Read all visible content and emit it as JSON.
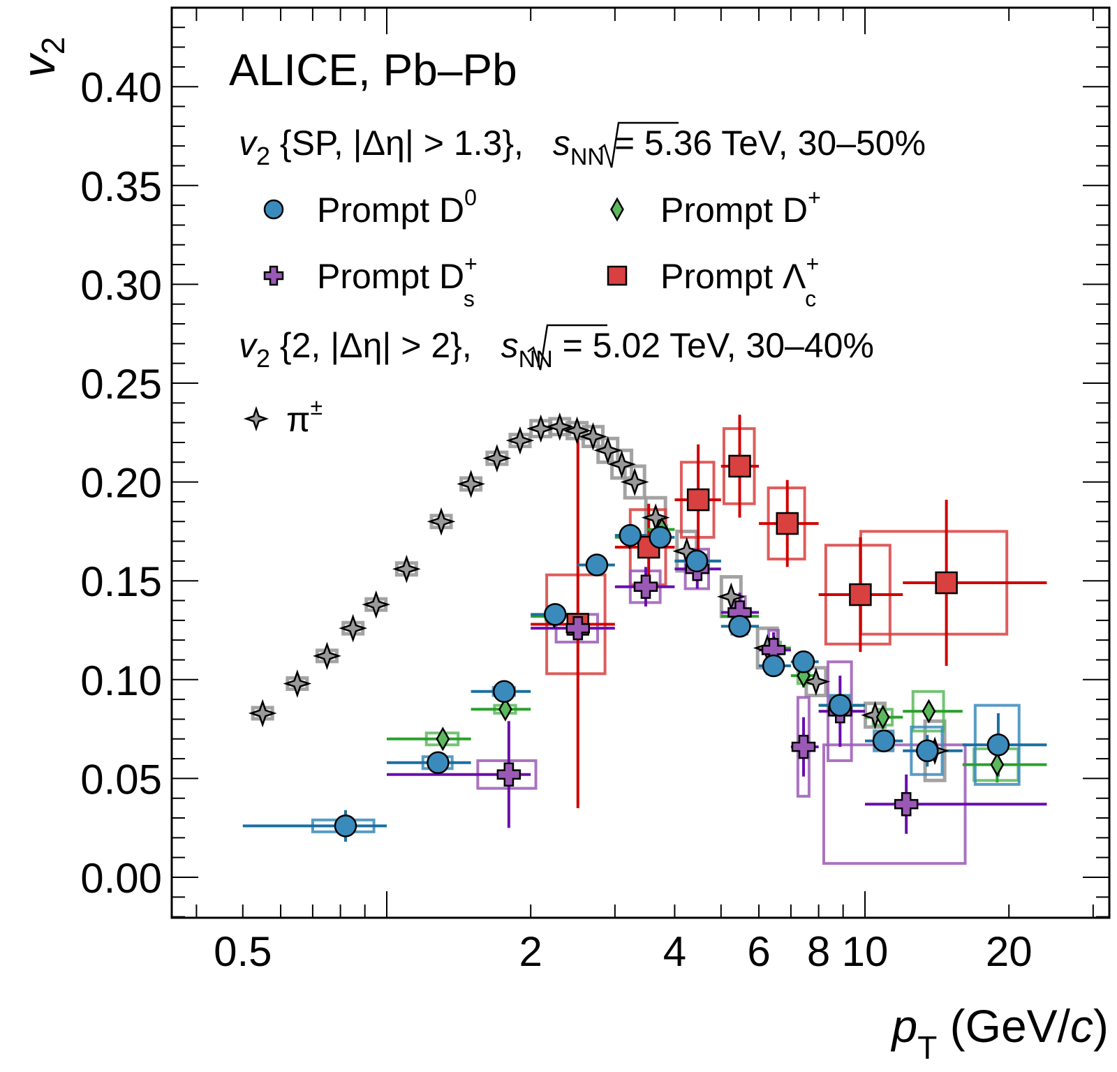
{
  "chart_data": {
    "type": "scatter",
    "title": "ALICE, Pb–Pb",
    "xlabel": "p_T (GeV/c)",
    "xlabel_main": "p",
    "xlabel_sub": "T",
    "xlabel_rest": " (GeV/",
    "xlabel_c": "c",
    "xlabel_close": ")",
    "ylabel": "v_2",
    "ylabel_main": "v",
    "ylabel_sub": "2",
    "xscale": "log",
    "xlim": [
      0.36,
      33
    ],
    "ylim": [
      -0.021,
      0.44
    ],
    "x_ticks": [
      0.5,
      2,
      4,
      6,
      8,
      10,
      20
    ],
    "x_tick_labels": [
      "0.5",
      "2",
      "4",
      "6",
      "8",
      "10",
      "20"
    ],
    "y_ticks": [
      0.0,
      0.05,
      0.1,
      0.15,
      0.2,
      0.25,
      0.3,
      0.35,
      0.4
    ],
    "y_tick_labels": [
      "0.00",
      "0.05",
      "0.10",
      "0.15",
      "0.20",
      "0.25",
      "0.30",
      "0.35",
      "0.40"
    ],
    "grid": false,
    "legend_placement": "top-left",
    "annotations": {
      "line1": {
        "v": "v",
        "sub": "2",
        "text": " {SP, |Δη| > 1.3},  ",
        "sqrt": "s",
        "sqrt_sub": "NN",
        "rest": " = 5.36 TeV, 30–50%"
      },
      "line2": {
        "v": "v",
        "sub": "2",
        "text": " {2, |Δη| > 2},  ",
        "sqrt": "s",
        "sqrt_sub": "NN",
        "rest": " = 5.02 TeV, 30–40%"
      }
    },
    "series": [
      {
        "name": "Prompt D0",
        "label_main": "Prompt D",
        "label_sup": "0",
        "label_sub": "",
        "marker": "circle",
        "color": "#1a6fa0",
        "fill": "#3a8bbb",
        "points": [
          {
            "x": 0.82,
            "y": 0.026,
            "xlo": 0.5,
            "xhi": 1.0,
            "ey": 0.008,
            "sx": 0.12,
            "sy": 0.003
          },
          {
            "x": 1.28,
            "y": 0.058,
            "xlo": 1.0,
            "xhi": 1.5,
            "ey": 0.002,
            "sx": 0.09,
            "sy": 0.003
          },
          {
            "x": 1.76,
            "y": 0.094,
            "xlo": 1.5,
            "xhi": 2.0,
            "ey": 0.002,
            "sx": 0.09,
            "sy": 0.002
          },
          {
            "x": 2.25,
            "y": 0.133,
            "xlo": 2.0,
            "xhi": 2.5,
            "ey": 0.002,
            "sx": 0.09,
            "sy": 0.002
          },
          {
            "x": 2.75,
            "y": 0.158,
            "xlo": 2.5,
            "xhi": 3.0,
            "ey": 0.002,
            "sx": 0.09,
            "sy": 0.002
          },
          {
            "x": 3.23,
            "y": 0.173,
            "xlo": 3.0,
            "xhi": 3.5,
            "ey": 0.003,
            "sx": 0.09,
            "sy": 0.002
          },
          {
            "x": 3.73,
            "y": 0.172,
            "xlo": 3.5,
            "xhi": 4.0,
            "ey": 0.003,
            "sx": 0.09,
            "sy": 0.002
          },
          {
            "x": 4.45,
            "y": 0.16,
            "xlo": 4.0,
            "xhi": 5.0,
            "ey": 0.004,
            "sx": 0.2,
            "sy": 0.003
          },
          {
            "x": 5.47,
            "y": 0.127,
            "xlo": 5.0,
            "xhi": 6.0,
            "ey": 0.004,
            "sx": 0.2,
            "sy": 0.004
          },
          {
            "x": 6.44,
            "y": 0.107,
            "xlo": 6.0,
            "xhi": 7.0,
            "ey": 0.005,
            "sx": 0.2,
            "sy": 0.004
          },
          {
            "x": 7.44,
            "y": 0.109,
            "xlo": 7.0,
            "xhi": 8.0,
            "ey": 0.005,
            "sx": 0.2,
            "sy": 0.004
          },
          {
            "x": 8.87,
            "y": 0.087,
            "xlo": 8.0,
            "xhi": 10.0,
            "ey": 0.006,
            "sx": 0.4,
            "sy": 0.005
          },
          {
            "x": 10.95,
            "y": 0.069,
            "xlo": 10.0,
            "xhi": 12.0,
            "ey": 0.005,
            "sx": 0.5,
            "sy": 0.005
          },
          {
            "x": 13.5,
            "y": 0.064,
            "xlo": 12.0,
            "xhi": 16.0,
            "ey": 0.008,
            "sx": 1.0,
            "sy": 0.012
          },
          {
            "x": 19.0,
            "y": 0.067,
            "xlo": 16.0,
            "xhi": 24.0,
            "ey": 0.016,
            "sx": 2.0,
            "sy": 0.02
          }
        ]
      },
      {
        "name": "Prompt D+",
        "label_main": "Prompt D",
        "label_sup": "+",
        "label_sub": "",
        "marker": "diamond",
        "color": "#2ca02c",
        "fill": "#5cb85c",
        "points": [
          {
            "x": 1.31,
            "y": 0.07,
            "xlo": 1.0,
            "xhi": 1.5,
            "ey": 0.004,
            "sx": 0.1,
            "sy": 0.003
          },
          {
            "x": 1.77,
            "y": 0.085,
            "xlo": 1.5,
            "xhi": 2.0,
            "ey": 0.003,
            "sx": 0.09,
            "sy": 0.002
          },
          {
            "x": 2.24,
            "y": 0.132,
            "xlo": 2.0,
            "xhi": 2.5,
            "ey": 0.002,
            "sx": 0.09,
            "sy": 0.002
          },
          {
            "x": 3.22,
            "y": 0.172,
            "xlo": 3.0,
            "xhi": 3.5,
            "ey": 0.002,
            "sx": 0.09,
            "sy": 0.002
          },
          {
            "x": 3.76,
            "y": 0.176,
            "xlo": 3.5,
            "xhi": 4.0,
            "ey": 0.003,
            "sx": 0.09,
            "sy": 0.002
          },
          {
            "x": 4.46,
            "y": 0.16,
            "xlo": 4.0,
            "xhi": 5.0,
            "ey": 0.004,
            "sx": 0.2,
            "sy": 0.003
          },
          {
            "x": 5.47,
            "y": 0.132,
            "xlo": 5.0,
            "xhi": 6.0,
            "ey": 0.005,
            "sx": 0.2,
            "sy": 0.003
          },
          {
            "x": 6.46,
            "y": 0.116,
            "xlo": 6.0,
            "xhi": 7.0,
            "ey": 0.005,
            "sx": 0.2,
            "sy": 0.003
          },
          {
            "x": 7.44,
            "y": 0.102,
            "xlo": 7.0,
            "xhi": 8.0,
            "ey": 0.006,
            "sx": 0.2,
            "sy": 0.004
          },
          {
            "x": 8.87,
            "y": 0.087,
            "xlo": 8.0,
            "xhi": 10.0,
            "ey": 0.006,
            "sx": 0.4,
            "sy": 0.005
          },
          {
            "x": 10.9,
            "y": 0.081,
            "xlo": 10.0,
            "xhi": 12.0,
            "ey": 0.006,
            "sx": 0.5,
            "sy": 0.004
          },
          {
            "x": 13.6,
            "y": 0.084,
            "xlo": 12.0,
            "xhi": 16.0,
            "ey": 0.004,
            "sx": 1.0,
            "sy": 0.01
          },
          {
            "x": 18.9,
            "y": 0.057,
            "xlo": 16.0,
            "xhi": 24.0,
            "ey": 0.009,
            "sx": 2.0,
            "sy": 0.008
          }
        ]
      },
      {
        "name": "Prompt Ds+",
        "label_main": "Prompt D",
        "label_sup": "+",
        "label_sub": "s",
        "marker": "cross",
        "color": "#6a0dad",
        "fill": "#9b59b6",
        "points": [
          {
            "x": 1.8,
            "y": 0.052,
            "xlo": 1.0,
            "xhi": 2.0,
            "ey": 0.027,
            "sx": 0.25,
            "sy": 0.007
          },
          {
            "x": 2.51,
            "y": 0.126,
            "xlo": 2.0,
            "xhi": 3.0,
            "ey": 0.003,
            "sx": 0.25,
            "sy": 0.007
          },
          {
            "x": 3.48,
            "y": 0.147,
            "xlo": 3.0,
            "xhi": 4.0,
            "ey": 0.01,
            "sx": 0.25,
            "sy": 0.008
          },
          {
            "x": 4.46,
            "y": 0.156,
            "xlo": 4.0,
            "xhi": 5.0,
            "ey": 0.01,
            "sx": 0.25,
            "sy": 0.01
          },
          {
            "x": 5.47,
            "y": 0.134,
            "xlo": 5.0,
            "xhi": 6.0,
            "ey": 0.01,
            "sx": 0.15,
            "sy": 0.008
          },
          {
            "x": 6.44,
            "y": 0.115,
            "xlo": 6.0,
            "xhi": 7.0,
            "ey": 0.009,
            "sx": 0.15,
            "sy": 0.01
          },
          {
            "x": 7.44,
            "y": 0.066,
            "xlo": 7.0,
            "xhi": 8.0,
            "ey": 0.015,
            "sx": 0.2,
            "sy": 0.025
          },
          {
            "x": 8.87,
            "y": 0.084,
            "xlo": 8.0,
            "xhi": 10.0,
            "ey": 0.018,
            "sx": 0.5,
            "sy": 0.025
          },
          {
            "x": 12.2,
            "y": 0.037,
            "xlo": 10.0,
            "xhi": 24.0,
            "ey": 0.015,
            "sx": 4.0,
            "sy": 0.03
          }
        ]
      },
      {
        "name": "Prompt Lambda_c+",
        "label_main": "Prompt Λ",
        "label_sup": "+",
        "label_sub": "c",
        "marker": "square",
        "color": "#d00000",
        "fill": "#d94040",
        "points": [
          {
            "x": 2.51,
            "y": 0.128,
            "xlo": 2.0,
            "xhi": 3.0,
            "ey": 0.093,
            "sx": 0.35,
            "sy": 0.025
          },
          {
            "x": 3.53,
            "y": 0.167,
            "xlo": 3.0,
            "xhi": 4.0,
            "ey": 0.022,
            "sx": 0.3,
            "sy": 0.019
          },
          {
            "x": 4.48,
            "y": 0.191,
            "xlo": 4.0,
            "xhi": 5.0,
            "ey": 0.028,
            "sx": 0.35,
            "sy": 0.019
          },
          {
            "x": 5.47,
            "y": 0.208,
            "xlo": 5.0,
            "xhi": 6.0,
            "ey": 0.026,
            "sx": 0.4,
            "sy": 0.019
          },
          {
            "x": 6.88,
            "y": 0.179,
            "xlo": 6.0,
            "xhi": 8.0,
            "ey": 0.022,
            "sx": 0.6,
            "sy": 0.018
          },
          {
            "x": 9.78,
            "y": 0.143,
            "xlo": 8.0,
            "xhi": 12.0,
            "ey": 0.029,
            "sx": 1.5,
            "sy": 0.025
          },
          {
            "x": 14.8,
            "y": 0.149,
            "xlo": 12.0,
            "xhi": 24.0,
            "ey": 0.042,
            "sx": 5.0,
            "sy": 0.026
          }
        ]
      },
      {
        "name": "pi+-",
        "label_main": "π",
        "label_sup": "±",
        "label_sub": "",
        "marker": "star4",
        "color": "#000000",
        "fill": "#999999",
        "syscolor": "#999999",
        "points": [
          {
            "x": 0.55,
            "y": 0.083,
            "sy": 0.002
          },
          {
            "x": 0.65,
            "y": 0.098,
            "sy": 0.002
          },
          {
            "x": 0.75,
            "y": 0.112,
            "sy": 0.002
          },
          {
            "x": 0.85,
            "y": 0.126,
            "sy": 0.002
          },
          {
            "x": 0.95,
            "y": 0.138,
            "sy": 0.002
          },
          {
            "x": 1.1,
            "y": 0.156,
            "sy": 0.003
          },
          {
            "x": 1.3,
            "y": 0.18,
            "sy": 0.003
          },
          {
            "x": 1.5,
            "y": 0.199,
            "sy": 0.003
          },
          {
            "x": 1.7,
            "y": 0.212,
            "sy": 0.003
          },
          {
            "x": 1.9,
            "y": 0.221,
            "sy": 0.003
          },
          {
            "x": 2.1,
            "y": 0.227,
            "sy": 0.004
          },
          {
            "x": 2.3,
            "y": 0.228,
            "sy": 0.004
          },
          {
            "x": 2.5,
            "y": 0.226,
            "sy": 0.004
          },
          {
            "x": 2.7,
            "y": 0.223,
            "sy": 0.005
          },
          {
            "x": 2.9,
            "y": 0.216,
            "sy": 0.006
          },
          {
            "x": 3.1,
            "y": 0.209,
            "sy": 0.007
          },
          {
            "x": 3.3,
            "y": 0.2,
            "sy": 0.008
          },
          {
            "x": 3.65,
            "y": 0.182,
            "sy": 0.01
          },
          {
            "x": 4.24,
            "y": 0.165,
            "sy": 0.01
          },
          {
            "x": 5.25,
            "y": 0.142,
            "sy": 0.01
          },
          {
            "x": 6.25,
            "y": 0.116,
            "sy": 0.01
          },
          {
            "x": 7.9,
            "y": 0.099,
            "sy": 0.007
          },
          {
            "x": 10.5,
            "y": 0.082,
            "sy": 0.006
          },
          {
            "x": 14.0,
            "y": 0.064,
            "sy": 0.015
          }
        ]
      }
    ]
  }
}
